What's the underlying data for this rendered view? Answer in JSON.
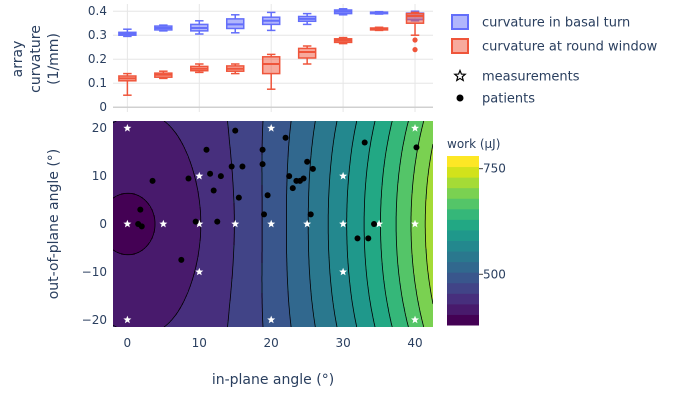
{
  "chart_data": [
    {
      "type": "box",
      "xlabel": "",
      "ylabel": "array curvature (1/mm)",
      "ylim": [
        -0.02,
        0.43
      ],
      "yticks": [
        0,
        0.1,
        0.2,
        0.3,
        0.4
      ],
      "ytick_labels": [
        "0",
        "0.1",
        "0.2",
        "0.3",
        "0.4"
      ],
      "grid": true,
      "legend_position": "right",
      "series": [
        {
          "name": "curvature in basal turn",
          "color": "#636efa",
          "boxes": [
            {
              "x": 0,
              "min": 0.295,
              "q1": 0.3,
              "median": 0.305,
              "q3": 0.312,
              "max": 0.325,
              "outliers": []
            },
            {
              "x": 5,
              "min": 0.318,
              "q1": 0.322,
              "median": 0.33,
              "q3": 0.338,
              "max": 0.342,
              "outliers": []
            },
            {
              "x": 10,
              "min": 0.305,
              "q1": 0.318,
              "median": 0.33,
              "q3": 0.345,
              "max": 0.36,
              "outliers": []
            },
            {
              "x": 15,
              "min": 0.31,
              "q1": 0.328,
              "median": 0.345,
              "q3": 0.368,
              "max": 0.385,
              "outliers": []
            },
            {
              "x": 20,
              "min": 0.32,
              "q1": 0.345,
              "median": 0.36,
              "q3": 0.375,
              "max": 0.395,
              "outliers": []
            },
            {
              "x": 25,
              "min": 0.345,
              "q1": 0.358,
              "median": 0.368,
              "q3": 0.378,
              "max": 0.39,
              "outliers": []
            },
            {
              "x": 30,
              "min": 0.385,
              "q1": 0.39,
              "median": 0.398,
              "q3": 0.405,
              "max": 0.41,
              "outliers": []
            },
            {
              "x": 35,
              "min": 0.388,
              "q1": 0.39,
              "median": 0.393,
              "q3": 0.396,
              "max": 0.398,
              "outliers": []
            },
            {
              "x": 40,
              "min": 0.36,
              "q1": 0.365,
              "median": 0.38,
              "q3": 0.392,
              "max": 0.4,
              "outliers": []
            }
          ]
        },
        {
          "name": "curvature at round window",
          "color": "#ef553b",
          "boxes": [
            {
              "x": 0,
              "min": 0.05,
              "q1": 0.11,
              "median": 0.12,
              "q3": 0.13,
              "max": 0.14,
              "outliers": []
            },
            {
              "x": 5,
              "min": 0.12,
              "q1": 0.125,
              "median": 0.135,
              "q3": 0.142,
              "max": 0.15,
              "outliers": []
            },
            {
              "x": 10,
              "min": 0.145,
              "q1": 0.152,
              "median": 0.16,
              "q3": 0.17,
              "max": 0.18,
              "outliers": []
            },
            {
              "x": 15,
              "min": 0.14,
              "q1": 0.15,
              "median": 0.16,
              "q3": 0.172,
              "max": 0.18,
              "outliers": []
            },
            {
              "x": 20,
              "min": 0.075,
              "q1": 0.14,
              "median": 0.18,
              "q3": 0.21,
              "max": 0.22,
              "outliers": []
            },
            {
              "x": 25,
              "min": 0.18,
              "q1": 0.205,
              "median": 0.23,
              "q3": 0.245,
              "max": 0.255,
              "outliers": []
            },
            {
              "x": 30,
              "min": 0.265,
              "q1": 0.27,
              "median": 0.278,
              "q3": 0.285,
              "max": 0.29,
              "outliers": []
            },
            {
              "x": 35,
              "min": 0.32,
              "q1": 0.322,
              "median": 0.325,
              "q3": 0.33,
              "max": 0.333,
              "outliers": []
            },
            {
              "x": 40,
              "min": 0.3,
              "q1": 0.35,
              "median": 0.38,
              "q3": 0.39,
              "max": 0.395,
              "outliers": [
                0.24,
                0.28
              ]
            }
          ]
        }
      ]
    },
    {
      "type": "contour",
      "xlabel": "in-plane angle (°)",
      "ylabel": "out-of-plane angle (°)",
      "xlim": [
        -2,
        42.5
      ],
      "ylim": [
        -21.5,
        21.5
      ],
      "xticks": [
        0,
        10,
        20,
        30,
        40
      ],
      "xtick_labels": [
        "0",
        "10",
        "20",
        "30",
        "40"
      ],
      "yticks": [
        -20,
        -10,
        0,
        10,
        20
      ],
      "ytick_labels": [
        "−20",
        "−10",
        "0",
        "10",
        "20"
      ],
      "colorbar": {
        "title": "work (μJ)",
        "range": [
          380,
          780
        ],
        "ticks": [
          500,
          750
        ],
        "tick_labels": [
          "500",
          "750"
        ],
        "levels": [
          380,
          405,
          430,
          455,
          480,
          505,
          530,
          555,
          580,
          605,
          630,
          655,
          680,
          705,
          730,
          755,
          780
        ],
        "colors": [
          "#440154",
          "#481a6c",
          "#472f7d",
          "#414487",
          "#39568c",
          "#31688e",
          "#2a788e",
          "#23888e",
          "#1f988b",
          "#22a884",
          "#35b779",
          "#54c568",
          "#7ad151",
          "#a5db36",
          "#d2e21b",
          "#fde725"
        ]
      },
      "measurements": {
        "name": "measurements",
        "points": [
          {
            "x": 0,
            "y": 20
          },
          {
            "x": 10,
            "y": 10
          },
          {
            "x": 20,
            "y": 20
          },
          {
            "x": 30,
            "y": 10
          },
          {
            "x": 40,
            "y": 20
          },
          {
            "x": 0,
            "y": 0
          },
          {
            "x": 5,
            "y": 0
          },
          {
            "x": 10,
            "y": 0
          },
          {
            "x": 15,
            "y": 0
          },
          {
            "x": 20,
            "y": 0
          },
          {
            "x": 25,
            "y": 0
          },
          {
            "x": 30,
            "y": 0
          },
          {
            "x": 35,
            "y": 0
          },
          {
            "x": 40,
            "y": 0
          },
          {
            "x": 10,
            "y": -10
          },
          {
            "x": 30,
            "y": -10
          },
          {
            "x": 0,
            "y": -20
          },
          {
            "x": 20,
            "y": -20
          },
          {
            "x": 40,
            "y": -20
          }
        ]
      },
      "patients": {
        "name": "patients",
        "points": [
          {
            "x": 1.8,
            "y": 3
          },
          {
            "x": 1.5,
            "y": 0
          },
          {
            "x": 2,
            "y": -0.5
          },
          {
            "x": 3.5,
            "y": 9
          },
          {
            "x": 7.5,
            "y": -7.5
          },
          {
            "x": 8.5,
            "y": 9.5
          },
          {
            "x": 9.5,
            "y": 0.5
          },
          {
            "x": 11,
            "y": 15.5
          },
          {
            "x": 11.5,
            "y": 10.5
          },
          {
            "x": 12,
            "y": 7
          },
          {
            "x": 12.5,
            "y": 0.5
          },
          {
            "x": 13,
            "y": 10
          },
          {
            "x": 14.5,
            "y": 12
          },
          {
            "x": 15,
            "y": 19.5
          },
          {
            "x": 15.5,
            "y": 5.5
          },
          {
            "x": 16,
            "y": 12
          },
          {
            "x": 18.8,
            "y": 15.5
          },
          {
            "x": 18.8,
            "y": 12.5
          },
          {
            "x": 19,
            "y": 2
          },
          {
            "x": 19.5,
            "y": 6
          },
          {
            "x": 22,
            "y": 18
          },
          {
            "x": 22.5,
            "y": 10
          },
          {
            "x": 23,
            "y": 7.5
          },
          {
            "x": 23.5,
            "y": 9
          },
          {
            "x": 24,
            "y": 9
          },
          {
            "x": 24.5,
            "y": 9.5
          },
          {
            "x": 25,
            "y": 13
          },
          {
            "x": 25.5,
            "y": 2
          },
          {
            "x": 25.8,
            "y": 11.5
          },
          {
            "x": 32,
            "y": -3
          },
          {
            "x": 33,
            "y": 17
          },
          {
            "x": 33.5,
            "y": -3
          },
          {
            "x": 34.3,
            "y": 0
          },
          {
            "x": 40.2,
            "y": 16
          }
        ]
      }
    }
  ],
  "legend": [
    {
      "name": "curvature in basal turn",
      "kind": "box",
      "color": "#636efa"
    },
    {
      "name": "curvature at round window",
      "kind": "box",
      "color": "#ef553b"
    },
    {
      "name": "measurements",
      "kind": "star"
    },
    {
      "name": "patients",
      "kind": "dot"
    }
  ]
}
